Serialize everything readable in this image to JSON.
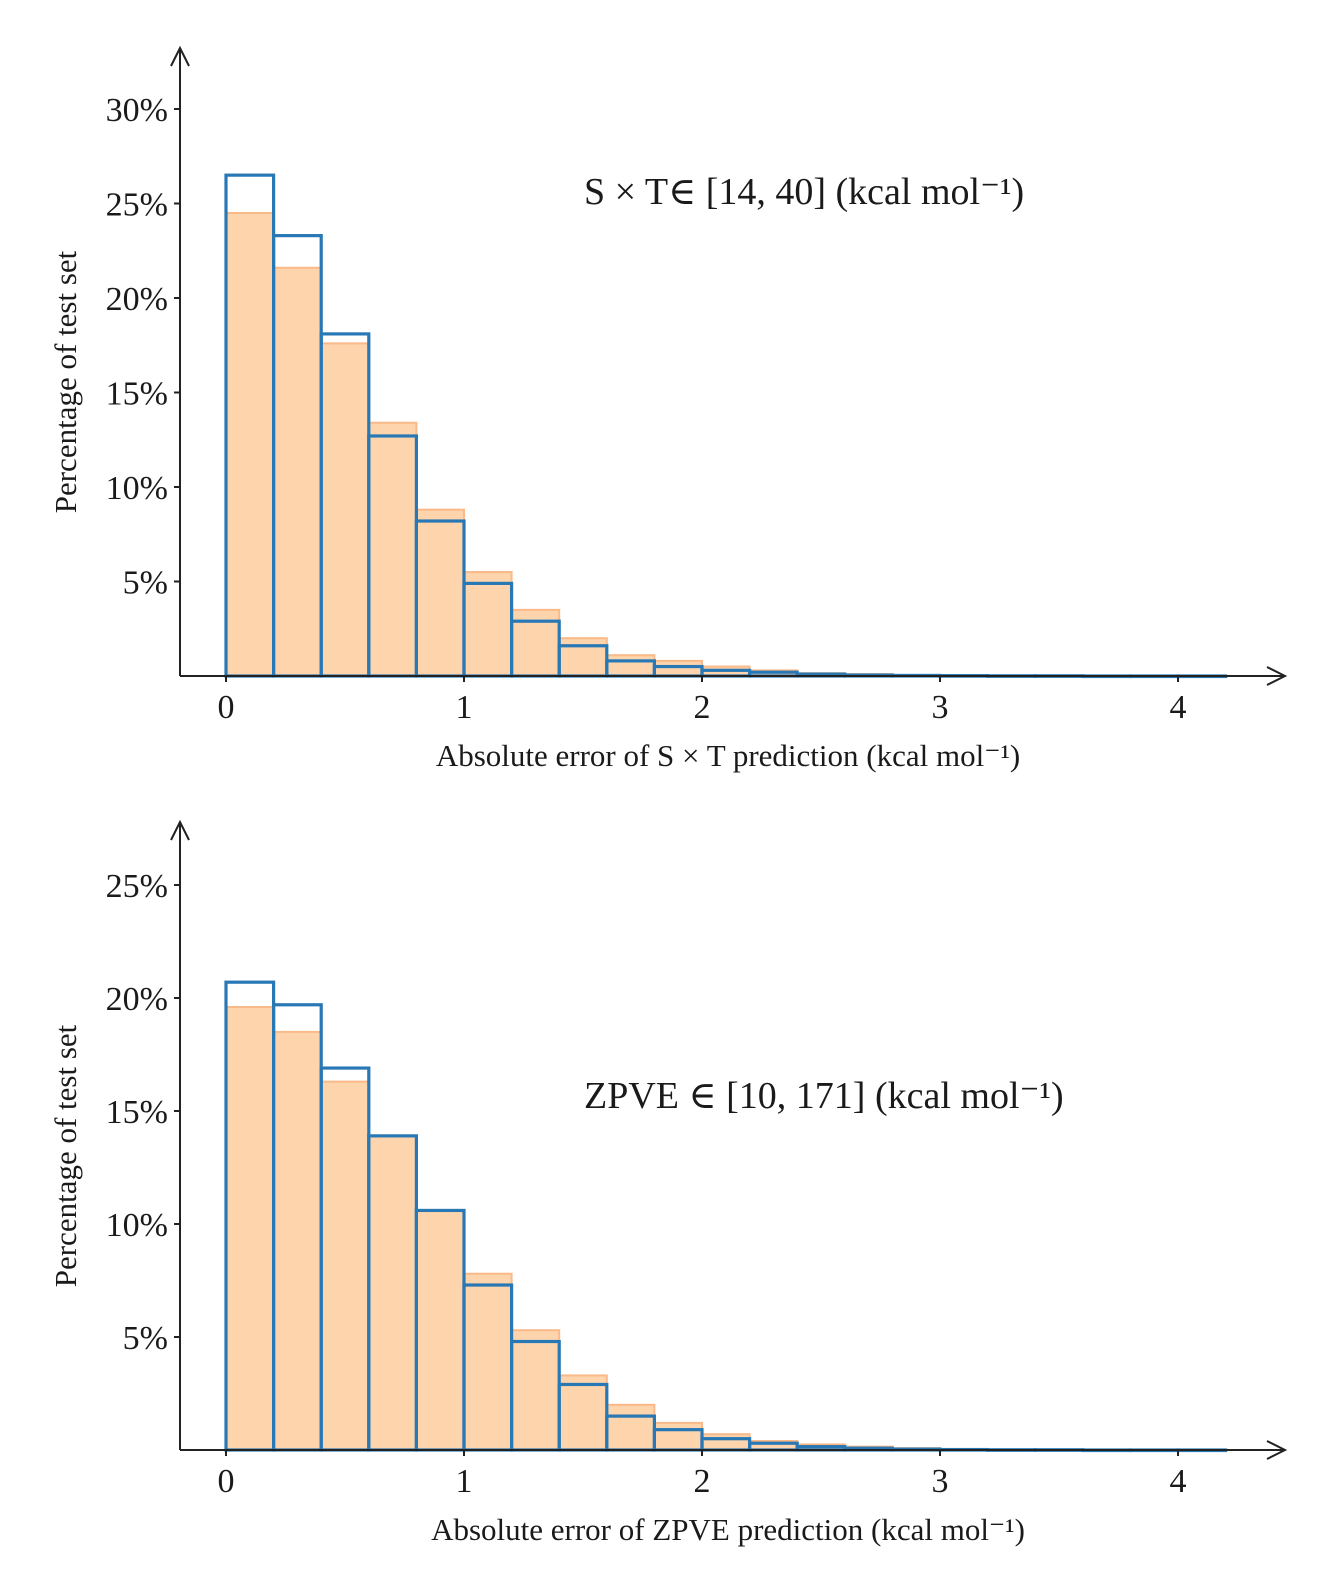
{
  "colors": {
    "outline": "#2878b5",
    "fill": "#fdd4ac",
    "fill_edge": "#f9b988",
    "axis": "#222222"
  },
  "chart_data": [
    {
      "type": "bar",
      "subtype": "histogram",
      "bin_edges": [
        0,
        0.2,
        0.4,
        0.6,
        0.8,
        1.0,
        1.2,
        1.4,
        1.6,
        1.8,
        2.0,
        2.2,
        2.4,
        2.6,
        2.8,
        3.0,
        3.2,
        3.4,
        3.6,
        3.8,
        4.0,
        4.2
      ],
      "series": [
        {
          "name": "outline",
          "style": "step",
          "values": [
            26.5,
            23.3,
            18.1,
            12.7,
            8.2,
            4.9,
            2.9,
            1.6,
            0.8,
            0.5,
            0.3,
            0.2,
            0.1,
            0.05,
            0.03,
            0.02,
            0.01,
            0.01,
            0.0,
            0.0,
            0.0
          ]
        },
        {
          "name": "filled",
          "style": "filled",
          "values": [
            24.5,
            21.6,
            17.6,
            13.4,
            8.8,
            5.5,
            3.5,
            2.0,
            1.1,
            0.8,
            0.5,
            0.3,
            0.15,
            0.1,
            0.05,
            0.02,
            0.01,
            0.01,
            0.0,
            0.0,
            0.0
          ]
        }
      ],
      "annotation": "S × T∈ [14, 40] (kcal mol⁻¹)",
      "xlabel": "Absolute error of S × T prediction (kcal mol⁻¹)",
      "ylabel": "Percentage of test set",
      "xticks": [
        "0",
        "1",
        "2",
        "3",
        "4"
      ],
      "xtick_values": [
        0,
        1,
        2,
        3,
        4
      ],
      "yticks": [
        "5%",
        "10%",
        "15%",
        "20%",
        "25%",
        "30%"
      ],
      "ytick_values": [
        5,
        10,
        15,
        20,
        25,
        30
      ],
      "xlim": [
        -0.2,
        4.35
      ],
      "ylim": [
        0,
        33
      ]
    },
    {
      "type": "bar",
      "subtype": "histogram",
      "bin_edges": [
        0,
        0.2,
        0.4,
        0.6,
        0.8,
        1.0,
        1.2,
        1.4,
        1.6,
        1.8,
        2.0,
        2.2,
        2.4,
        2.6,
        2.8,
        3.0,
        3.2,
        3.4,
        3.6,
        3.8,
        4.0,
        4.2
      ],
      "series": [
        {
          "name": "outline",
          "style": "step",
          "values": [
            20.7,
            19.7,
            16.9,
            13.9,
            10.6,
            7.3,
            4.8,
            2.9,
            1.5,
            0.9,
            0.5,
            0.3,
            0.15,
            0.08,
            0.04,
            0.02,
            0.01,
            0.01,
            0.0,
            0.0,
            0.0
          ]
        },
        {
          "name": "filled",
          "style": "filled",
          "values": [
            19.6,
            18.5,
            16.3,
            13.9,
            10.6,
            7.8,
            5.3,
            3.3,
            2.0,
            1.2,
            0.7,
            0.4,
            0.25,
            0.15,
            0.08,
            0.04,
            0.02,
            0.01,
            0.0,
            0.0,
            0.0
          ]
        }
      ],
      "annotation": "ZPVE ∈ [10, 171] (kcal mol⁻¹)",
      "xlabel": "Absolute error of ZPVE prediction (kcal mol⁻¹)",
      "ylabel": "Percentage of test set",
      "xticks": [
        "0",
        "1",
        "2",
        "3",
        "4"
      ],
      "xtick_values": [
        0,
        1,
        2,
        3,
        4
      ],
      "yticks": [
        "5%",
        "10%",
        "15%",
        "20%",
        "25%"
      ],
      "ytick_values": [
        5,
        10,
        15,
        20,
        25
      ],
      "xlim": [
        -0.2,
        4.35
      ],
      "ylim": [
        0,
        27.5
      ]
    }
  ]
}
